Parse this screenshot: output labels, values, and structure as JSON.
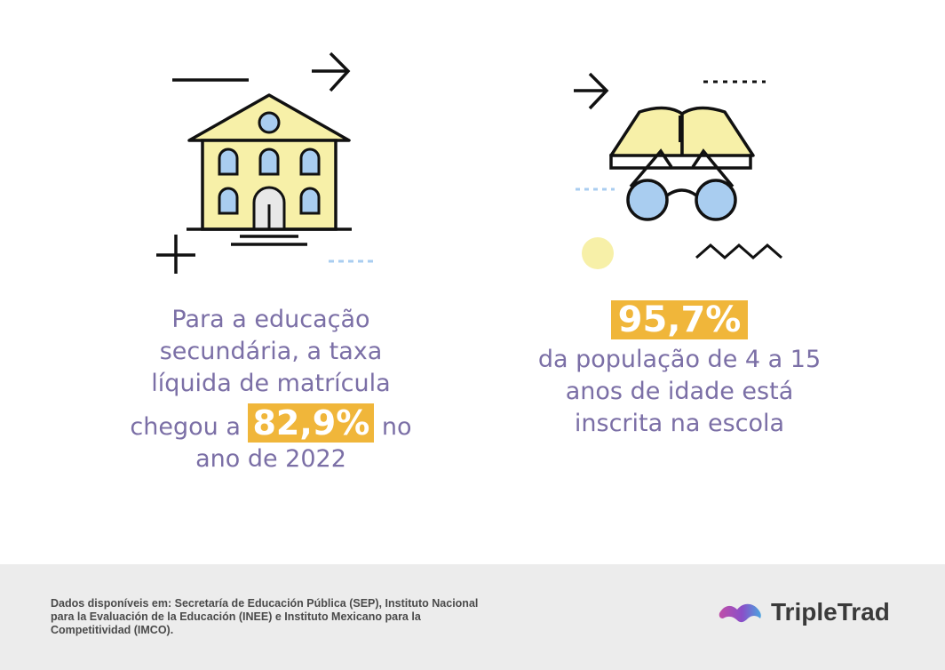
{
  "left_stat": {
    "text_line1": "Para a educação",
    "text_line2": "secundária, a taxa",
    "text_line3": "líquida de matrícula",
    "text_before": "chegou a",
    "highlight": "82,9%",
    "text_after": "no",
    "text_line5": "ano de 2022",
    "icon": "school-building-icon"
  },
  "right_stat": {
    "highlight": "95,7%",
    "text_line1": "da população de 4 a 15",
    "text_line2": "anos de idade está",
    "text_line3": "inscrita na escola",
    "icon": "book-glasses-icon"
  },
  "footer": {
    "source_text": "Dados disponíveis em: Secretaría de Educación Pública (SEP), Instituto Nacional para la Evaluación de la Educación (INEE) e Instituto Mexicano para la Competitividad (IMCO).",
    "brand_name": "TripleTrad"
  },
  "colors": {
    "text": "#7b6fa6",
    "highlight": "#f0b63a",
    "building_fill": "#f7f0a8",
    "window_fill": "#a9cdf0",
    "footer_bg": "#ececec"
  }
}
